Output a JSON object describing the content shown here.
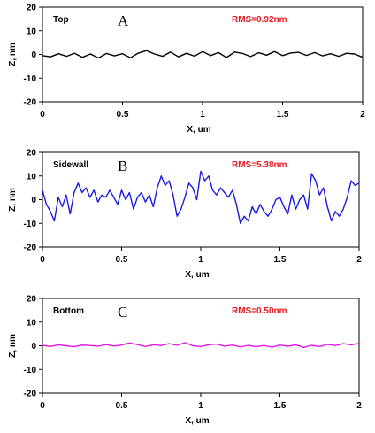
{
  "chart_data": [
    {
      "type": "line",
      "panel_name": "Top",
      "letter": "A",
      "annotation": "RMS=0.92nm",
      "xlabel": "X, um",
      "ylabel": "Z, nm",
      "xlim": [
        0,
        2
      ],
      "ylim": [
        -20,
        20
      ],
      "x_ticks": [
        "0",
        "0.5",
        "1",
        "1.5",
        "2"
      ],
      "y_ticks": [
        "20",
        "10",
        "0",
        "-10",
        "-20"
      ],
      "color": "#000000",
      "series": [
        {
          "x": [
            0,
            0.05,
            0.1,
            0.15,
            0.2,
            0.25,
            0.3,
            0.35,
            0.4,
            0.45,
            0.5,
            0.55,
            0.6,
            0.65,
            0.7,
            0.75,
            0.8,
            0.85,
            0.9,
            0.95,
            1.0,
            1.05,
            1.1,
            1.15,
            1.2,
            1.25,
            1.3,
            1.35,
            1.4,
            1.45,
            1.5,
            1.55,
            1.6,
            1.65,
            1.7,
            1.75,
            1.8,
            1.85,
            1.9,
            1.95,
            2.0
          ],
          "values": [
            -0.5,
            -1.0,
            0.3,
            -0.8,
            0.5,
            -1.2,
            0.2,
            -1.5,
            0.4,
            -0.6,
            0.3,
            -1.4,
            0.6,
            1.6,
            0.2,
            -0.8,
            1.0,
            -1.0,
            0.5,
            -0.7,
            1.2,
            -0.5,
            0.8,
            -1.3,
            1.0,
            0.4,
            -0.9,
            0.7,
            -0.3,
            1.2,
            -0.5,
            0.6,
            0.9,
            -0.4,
            0.8,
            -0.6,
            0.3,
            -0.8,
            0.5,
            0.2,
            -1.2
          ]
        }
      ]
    },
    {
      "type": "line",
      "panel_name": "Sidewall",
      "letter": "B",
      "annotation": "RMS=5.38nm",
      "xlabel": "X, um",
      "ylabel": "Z, nm",
      "xlim": [
        0,
        2
      ],
      "ylim": [
        -20,
        20
      ],
      "x_ticks": [
        "0",
        "0.5",
        "1",
        "1.5",
        "2"
      ],
      "y_ticks": [
        "20",
        "10",
        "0",
        "-10",
        "-20"
      ],
      "color": "#1a1ae6",
      "series": [
        {
          "x": [
            0,
            0.025,
            0.05,
            0.075,
            0.1,
            0.125,
            0.15,
            0.175,
            0.2,
            0.225,
            0.25,
            0.275,
            0.3,
            0.325,
            0.35,
            0.375,
            0.4,
            0.425,
            0.45,
            0.475,
            0.5,
            0.525,
            0.55,
            0.575,
            0.6,
            0.625,
            0.65,
            0.675,
            0.7,
            0.725,
            0.75,
            0.775,
            0.8,
            0.825,
            0.85,
            0.875,
            0.9,
            0.925,
            0.95,
            0.975,
            1.0,
            1.025,
            1.05,
            1.075,
            1.1,
            1.125,
            1.15,
            1.175,
            1.2,
            1.225,
            1.25,
            1.275,
            1.3,
            1.325,
            1.35,
            1.375,
            1.4,
            1.425,
            1.45,
            1.475,
            1.5,
            1.525,
            1.55,
            1.575,
            1.6,
            1.625,
            1.65,
            1.675,
            1.7,
            1.725,
            1.75,
            1.775,
            1.8,
            1.825,
            1.85,
            1.875,
            1.9,
            1.925,
            1.95,
            1.975,
            2.0
          ],
          "values": [
            4,
            -2,
            -5,
            -9,
            1,
            -3,
            2,
            -6,
            3,
            7,
            3,
            5,
            1,
            4,
            -1,
            2,
            1,
            4,
            1,
            -2,
            4,
            0,
            3,
            -4,
            1,
            3,
            -1,
            2,
            -3,
            5,
            10,
            6,
            8,
            2,
            -7,
            -4,
            1,
            7,
            5,
            0,
            12,
            8,
            10,
            4,
            2,
            5,
            3,
            1,
            4,
            -2,
            -10,
            -7,
            -9,
            -3,
            -6,
            -2,
            -5,
            -7,
            -4,
            0,
            1,
            -3,
            -6,
            2,
            -4,
            0,
            2,
            -4,
            11,
            8,
            2,
            5,
            -3,
            -9,
            -5,
            -7,
            -4,
            1,
            8,
            6,
            7
          ]
        }
      ]
    },
    {
      "type": "line",
      "panel_name": "Bottom",
      "letter": "C",
      "annotation": "RMS=0.50nm",
      "xlabel": "X, um",
      "ylabel": "Z, nm",
      "xlim": [
        0,
        2
      ],
      "ylim": [
        -20,
        20
      ],
      "x_ticks": [
        "0",
        "0.5",
        "1",
        "1.5",
        "2"
      ],
      "y_ticks": [
        "20",
        "10",
        "0",
        "-10",
        "-20"
      ],
      "color": "#e619e6",
      "series": [
        {
          "x": [
            0,
            0.05,
            0.1,
            0.15,
            0.2,
            0.25,
            0.3,
            0.35,
            0.4,
            0.45,
            0.5,
            0.55,
            0.6,
            0.65,
            0.7,
            0.75,
            0.8,
            0.85,
            0.9,
            0.95,
            1.0,
            1.05,
            1.1,
            1.15,
            1.2,
            1.25,
            1.3,
            1.35,
            1.4,
            1.45,
            1.5,
            1.55,
            1.6,
            1.65,
            1.7,
            1.75,
            1.8,
            1.85,
            1.9,
            1.95,
            2.0
          ],
          "values": [
            0.2,
            -0.3,
            0.4,
            0.0,
            -0.4,
            0.3,
            0.1,
            -0.2,
            0.5,
            -0.1,
            0.3,
            1.2,
            0.5,
            -0.3,
            0.4,
            0.1,
            0.9,
            0.2,
            1.3,
            0.0,
            -0.3,
            0.4,
            0.7,
            -0.2,
            0.3,
            -0.5,
            0.2,
            -0.4,
            0.1,
            -0.6,
            0.3,
            -0.2,
            0.4,
            -0.7,
            0.2,
            -0.3,
            0.6,
            0.1,
            0.9,
            0.4,
            1.0
          ]
        }
      ]
    }
  ]
}
